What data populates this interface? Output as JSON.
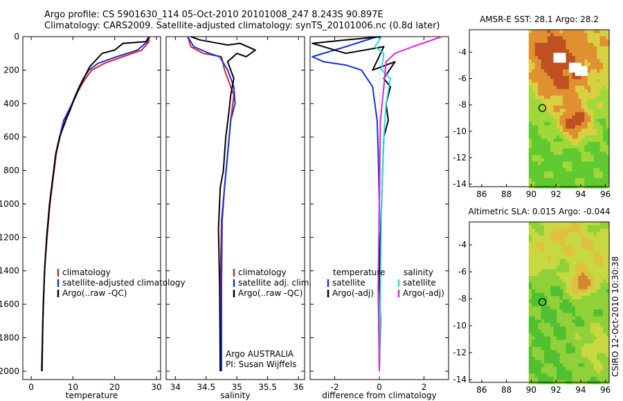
{
  "header": {
    "line1": "Argo profile: CS 5901630_114 05-Oct-2010 20101008_247 8.243S 90.897E",
    "line2": "Climatology: CARS2009. Satellite-adjusted climatology: synTS_20101006.nc (0.8d later)"
  },
  "credit": {
    "argo": "Argo AUSTRALIA",
    "pi": "PI: Susan Wijffels",
    "stamp": "CSIRO 12-Oct-2010 10:30:38"
  },
  "colors": {
    "climatology": "#e02020",
    "satellite": "#1030e0",
    "argo": "#000000",
    "salinity_satellite": "#20e0e0",
    "salinity_argo": "#e020e0",
    "land_white": "#ffffff"
  },
  "chart_data": [
    {
      "type": "line",
      "id": "temperature",
      "xlabel": "temperature",
      "ylabel": "",
      "xlim": [
        -2,
        31
      ],
      "ylim": [
        2050,
        0
      ],
      "xticks": [
        0,
        10,
        20,
        30
      ],
      "yticks": [
        0,
        200,
        400,
        600,
        800,
        1000,
        1200,
        1400,
        1600,
        1800,
        2000
      ],
      "legend": {
        "placement": "lower-right",
        "entries": [
          "climatology",
          "satellite-adjusted climatology",
          "Argo(..raw -QC)"
        ]
      },
      "series": [
        {
          "name": "climatology",
          "color": "climatology",
          "x": [
            28.3,
            28.2,
            26.5,
            22.0,
            17.5,
            14.5,
            13.0,
            11.8,
            10.8,
            9.9,
            8.9,
            7.9,
            6.9,
            6.0,
            4.5,
            3.8,
            3.2,
            2.9,
            2.7,
            2.5
          ],
          "y": [
            0,
            30,
            80,
            120,
            160,
            200,
            250,
            300,
            350,
            400,
            450,
            500,
            600,
            700,
            1000,
            1200,
            1400,
            1600,
            1800,
            2000
          ]
        },
        {
          "name": "satellite-adjusted climatology",
          "color": "satellite",
          "x": [
            28.1,
            27.8,
            25.5,
            20.5,
            16.0,
            13.8,
            12.5,
            11.5,
            10.6,
            9.8,
            8.8,
            7.8,
            6.8,
            5.9,
            4.4,
            3.7,
            3.2,
            2.9,
            2.7,
            2.5
          ],
          "y": [
            0,
            30,
            80,
            120,
            160,
            200,
            250,
            300,
            350,
            400,
            450,
            500,
            600,
            700,
            1000,
            1200,
            1400,
            1600,
            1800,
            2000
          ]
        },
        {
          "name": "Argo(..raw -QC)",
          "color": "argo",
          "x": [
            28.2,
            27.5,
            22.0,
            20.0,
            17.0,
            15.5,
            14.0,
            13.2,
            12.2,
            11.2,
            10.2,
            9.3,
            8.3,
            6.8,
            5.9,
            4.4,
            3.7,
            3.2,
            2.8,
            2.6
          ],
          "y": [
            0,
            30,
            40,
            80,
            100,
            140,
            180,
            220,
            270,
            320,
            380,
            440,
            500,
            600,
            700,
            1000,
            1200,
            1400,
            1700,
            2000
          ]
        }
      ]
    },
    {
      "type": "line",
      "id": "salinity",
      "xlabel": "salinity",
      "ylabel": "",
      "xlim": [
        33.85,
        36.1
      ],
      "ylim": [
        2050,
        0
      ],
      "xticks": [
        34,
        34.5,
        35,
        35.5,
        36
      ],
      "xtick_labels": [
        "34",
        "34.5",
        "35",
        "35.5",
        "36"
      ],
      "legend": {
        "placement": "lower-right",
        "entries": [
          "climatology",
          "satellite adj. clim.",
          "Argo(..raw -QC)"
        ]
      },
      "series": [
        {
          "name": "climatology",
          "color": "climatology",
          "x": [
            34.2,
            34.25,
            34.45,
            34.75,
            34.8,
            34.85,
            34.95,
            34.9,
            34.85,
            34.8,
            34.75,
            34.73,
            34.73
          ],
          "y": [
            0,
            60,
            100,
            120,
            200,
            250,
            350,
            500,
            700,
            900,
            1100,
            1500,
            2000
          ]
        },
        {
          "name": "satellite adj. clim.",
          "color": "satellite",
          "x": [
            34.2,
            34.3,
            34.55,
            34.72,
            34.85,
            34.95,
            34.97,
            34.9,
            34.85,
            34.8,
            34.76,
            34.75,
            34.75
          ],
          "y": [
            0,
            60,
            100,
            120,
            200,
            300,
            400,
            500,
            700,
            900,
            1100,
            1500,
            2000
          ]
        },
        {
          "name": "Argo(..raw -QC)",
          "color": "argo",
          "x": [
            34.25,
            34.4,
            34.7,
            34.85,
            35.05,
            35.3,
            35.15,
            35.0,
            34.85,
            34.95,
            34.9,
            34.87,
            34.82,
            34.8,
            34.78,
            34.73,
            34.7,
            34.72,
            34.73
          ],
          "y": [
            0,
            20,
            40,
            50,
            40,
            80,
            120,
            100,
            150,
            250,
            350,
            450,
            600,
            700,
            800,
            900,
            1150,
            1500,
            2000
          ]
        }
      ]
    },
    {
      "type": "line",
      "id": "difference",
      "xlabel": "difference from climatology",
      "ylabel": "",
      "xlim": [
        -3.1,
        3.1
      ],
      "ylim": [
        2050,
        0
      ],
      "xticks": [
        -2,
        0,
        2
      ],
      "xtick_labels": [
        "-2",
        "0",
        "2"
      ],
      "legend": {
        "placement": "lower-right",
        "col1_title": "temperature",
        "col1_entries": [
          "satellite",
          "Argo(-adj)"
        ],
        "col2_title": "salinity",
        "col2_entries": [
          "satellite",
          "Argo(-adj)"
        ]
      },
      "series": [
        {
          "name": "temperature satellite",
          "color": "satellite",
          "x": [
            -0.1,
            -1.5,
            -3.0,
            -2.5,
            -1.5,
            -0.8,
            -0.3,
            -0.2,
            -0.1,
            -0.05,
            0.0,
            -0.05,
            0.0
          ],
          "y": [
            0,
            60,
            120,
            150,
            170,
            200,
            300,
            400,
            500,
            700,
            1000,
            1500,
            2000
          ]
        },
        {
          "name": "temperature Argo(-adj)",
          "color": "argo",
          "x": [
            0.1,
            -1.5,
            -3.0,
            -1.5,
            0.2,
            -0.3,
            0.7,
            0.2,
            0.5,
            0.3,
            0.4,
            0.2,
            0.15,
            0.1,
            0.05,
            0.0,
            0.05,
            0.0
          ],
          "y": [
            0,
            20,
            40,
            100,
            60,
            200,
            150,
            250,
            300,
            400,
            500,
            600,
            800,
            1000,
            1200,
            1400,
            1700,
            2000
          ]
        },
        {
          "name": "salinity satellite",
          "color": "salinity_satellite",
          "x": [
            0.1,
            -0.2,
            0.2,
            0.1,
            0.5,
            0.3,
            0.2,
            0.1,
            0.05,
            0.0
          ],
          "y": [
            0,
            60,
            100,
            200,
            250,
            400,
            600,
            1000,
            1500,
            2000
          ]
        },
        {
          "name": "salinity Argo(-adj)",
          "color": "salinity_argo",
          "x": [
            2.8,
            1.5,
            0.7,
            0.3,
            0.2,
            0.05,
            0.0,
            -0.05,
            0.0
          ],
          "y": [
            0,
            60,
            100,
            150,
            300,
            500,
            1000,
            1500,
            2000
          ]
        }
      ]
    },
    {
      "type": "heatmap",
      "id": "sst_map",
      "title": "AMSR-E SST: 28.1 Argo: 28.2",
      "xlim": [
        85,
        96.3
      ],
      "ylim": [
        -14.2,
        -2.3
      ],
      "xticks": [
        86,
        88,
        90,
        92,
        94,
        96
      ],
      "yticks": [
        -4,
        -6,
        -8,
        -10,
        -12,
        -14
      ],
      "data_lon_range": [
        89.8,
        96.3
      ],
      "argo_marker": {
        "lon": 90.9,
        "lat": -8.24
      },
      "palette": [
        "#20b020",
        "#60c830",
        "#a0d83a",
        "#d8d040",
        "#e09030",
        "#c05020"
      ],
      "gaps": [
        {
          "lon": 93.5,
          "lat": -5.2
        },
        {
          "lon": 94.1,
          "lat": -5.4
        },
        {
          "lon": 92.3,
          "lat": -4.4
        }
      ],
      "hotspots": [
        {
          "lon": 94.2,
          "lat": -3.5,
          "level": 3.6,
          "spread": 3.0
        },
        {
          "lon": 93.6,
          "lat": -9.4,
          "level": 4.6,
          "spread": 0.9
        },
        {
          "lon": 92.2,
          "lat": -6.5,
          "level": 3.2,
          "spread": 1.6
        },
        {
          "lon": 90.9,
          "lat": -3.6,
          "level": 3.3,
          "spread": 1.5
        }
      ],
      "base_level": 1.2
    },
    {
      "type": "heatmap",
      "id": "sla_map",
      "title": "Altimetric SLA: 0.015 Argo: -0.044",
      "xlim": [
        85,
        96.3
      ],
      "ylim": [
        -14.2,
        -2.3
      ],
      "xticks": [
        86,
        88,
        90,
        92,
        94,
        96
      ],
      "yticks": [
        -4,
        -6,
        -8,
        -10,
        -12,
        -14
      ],
      "data_lon_range": [
        89.8,
        96.3
      ],
      "argo_marker": {
        "lon": 90.9,
        "lat": -8.24
      },
      "palette": [
        "#20a020",
        "#50c030",
        "#90d038",
        "#c8d840",
        "#e0c040",
        "#d08830"
      ],
      "gaps": [],
      "hotspots": [
        {
          "lon": 94.0,
          "lat": -6.9,
          "level": 4.6,
          "spread": 0.7
        },
        {
          "lon": 92.6,
          "lat": -2.9,
          "level": 3.4,
          "spread": 1.6
        },
        {
          "lon": 95.5,
          "lat": -5.0,
          "level": 3.2,
          "spread": 1.6
        },
        {
          "lon": 95.7,
          "lat": -11.5,
          "level": 3.0,
          "spread": 1.5
        },
        {
          "lon": 90.4,
          "lat": -5.0,
          "level": 2.8,
          "spread": 1.2
        }
      ],
      "base_level": 1.4
    }
  ]
}
